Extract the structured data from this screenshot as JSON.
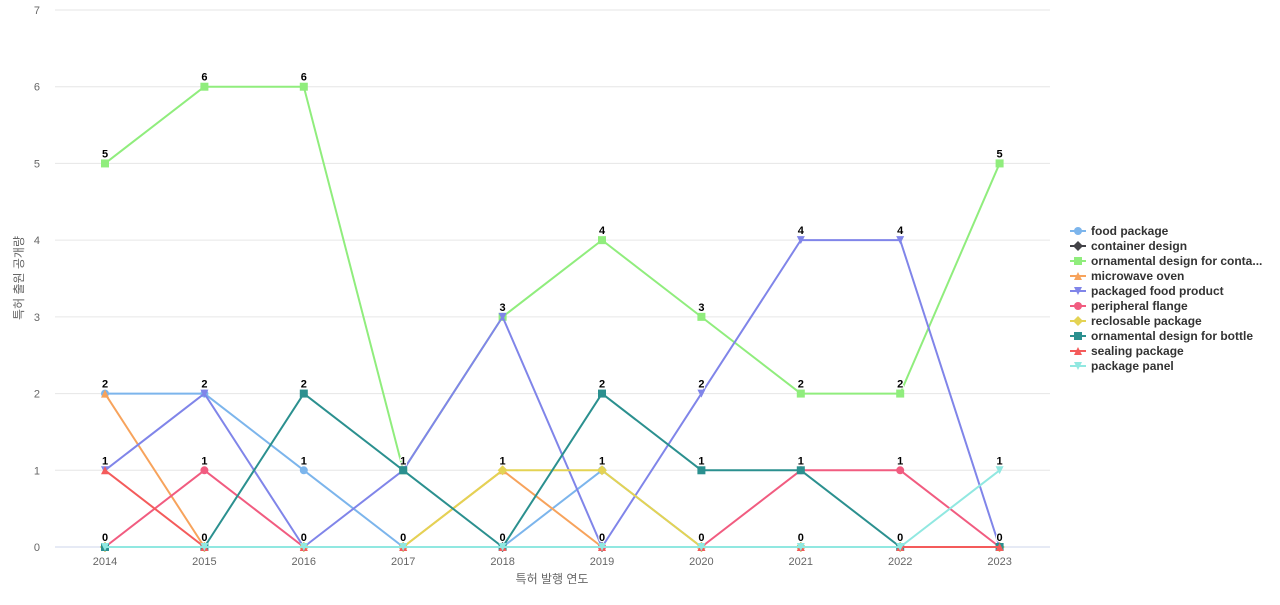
{
  "chart_data": {
    "type": "line",
    "title": "",
    "xlabel": "특허 발행 연도",
    "ylabel": "특허 출원 공개량",
    "x": [
      "2014",
      "2015",
      "2016",
      "2017",
      "2018",
      "2019",
      "2020",
      "2021",
      "2022",
      "2023"
    ],
    "ylim": [
      0,
      7
    ],
    "yticks": [
      0,
      1,
      2,
      3,
      4,
      5,
      6,
      7
    ],
    "grid": true,
    "legend_position": "right",
    "series": [
      {
        "name": "food package",
        "color": "#7cb5ec",
        "marker": "circle",
        "values": [
          2,
          2,
          1,
          0,
          0,
          1,
          0,
          0,
          0,
          0
        ]
      },
      {
        "name": "container design",
        "color": "#434348",
        "marker": "diamond",
        "values": [
          0,
          0,
          0,
          0,
          0,
          0,
          0,
          0,
          0,
          0
        ]
      },
      {
        "name": "ornamental design for conta...",
        "color": "#90ed7d",
        "marker": "square",
        "values": [
          5,
          6,
          6,
          1,
          3,
          4,
          3,
          2,
          2,
          5
        ]
      },
      {
        "name": "microwave oven",
        "color": "#f7a35c",
        "marker": "triangle",
        "values": [
          2,
          0,
          0,
          0,
          1,
          0,
          0,
          0,
          0,
          0
        ]
      },
      {
        "name": "packaged food product",
        "color": "#8085e9",
        "marker": "triangle-down",
        "values": [
          1,
          2,
          0,
          1,
          3,
          0,
          2,
          4,
          4,
          0
        ]
      },
      {
        "name": "peripheral flange",
        "color": "#f15c80",
        "marker": "circle",
        "values": [
          0,
          1,
          0,
          0,
          0,
          0,
          0,
          1,
          1,
          0
        ]
      },
      {
        "name": "reclosable package",
        "color": "#e4d354",
        "marker": "diamond",
        "values": [
          0,
          0,
          0,
          0,
          1,
          1,
          0,
          0,
          0,
          0
        ]
      },
      {
        "name": "ornamental design for bottle",
        "color": "#2b908f",
        "marker": "square",
        "values": [
          0,
          0,
          2,
          1,
          0,
          2,
          1,
          1,
          0,
          0
        ]
      },
      {
        "name": "sealing package",
        "color": "#f45b5b",
        "marker": "triangle",
        "values": [
          1,
          0,
          0,
          0,
          0,
          0,
          0,
          0,
          0,
          0
        ]
      },
      {
        "name": "package panel",
        "color": "#91e8e1",
        "marker": "triangle-down",
        "values": [
          0,
          0,
          0,
          0,
          0,
          0,
          0,
          0,
          0,
          1
        ]
      }
    ],
    "data_labels": [
      {
        "x": "2014",
        "values": [
          5,
          2,
          1,
          0
        ]
      },
      {
        "x": "2015",
        "values": [
          6,
          2,
          1,
          0
        ]
      },
      {
        "x": "2016",
        "values": [
          6,
          2,
          1,
          0
        ]
      },
      {
        "x": "2017",
        "values": [
          1,
          0
        ]
      },
      {
        "x": "2018",
        "values": [
          3,
          1,
          0
        ]
      },
      {
        "x": "2019",
        "values": [
          4,
          2,
          1,
          0
        ]
      },
      {
        "x": "2020",
        "values": [
          3,
          2,
          1,
          0
        ]
      },
      {
        "x": "2021",
        "values": [
          4,
          2,
          1,
          0
        ]
      },
      {
        "x": "2022",
        "values": [
          4,
          2,
          1,
          0
        ]
      },
      {
        "x": "2023",
        "values": [
          5,
          1,
          0
        ]
      }
    ]
  }
}
